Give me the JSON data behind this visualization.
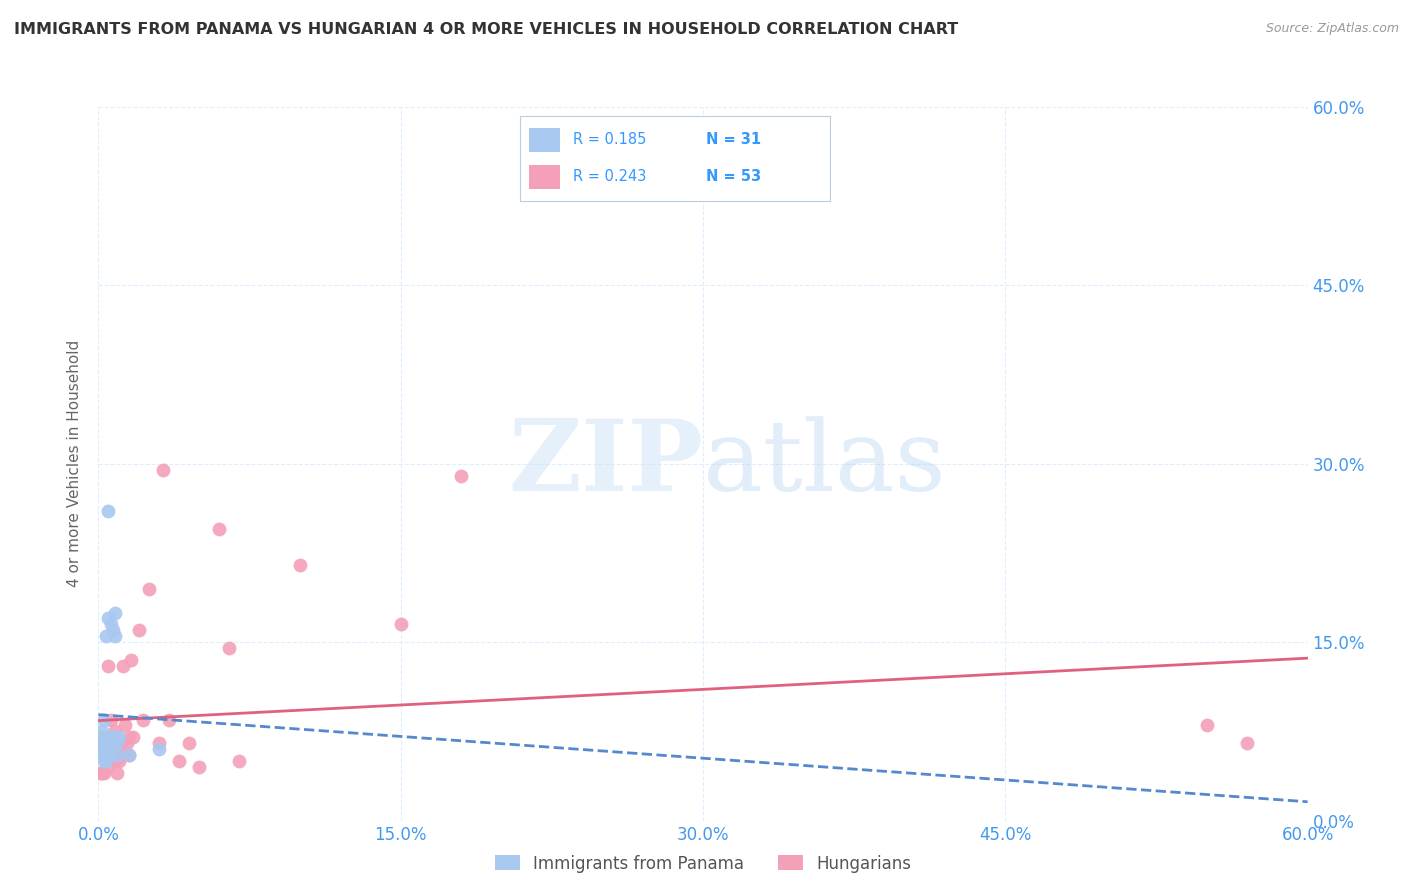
{
  "title": "IMMIGRANTS FROM PANAMA VS HUNGARIAN 4 OR MORE VEHICLES IN HOUSEHOLD CORRELATION CHART",
  "source": "Source: ZipAtlas.com",
  "ylabel": "4 or more Vehicles in Household",
  "xlim": [
    0.0,
    0.6
  ],
  "ylim": [
    0.0,
    0.6
  ],
  "xticks": [
    0.0,
    0.15,
    0.3,
    0.45,
    0.6
  ],
  "yticks": [
    0.0,
    0.15,
    0.3,
    0.45,
    0.6
  ],
  "xticklabels": [
    "0.0%",
    "15.0%",
    "30.0%",
    "45.0%",
    "60.0%"
  ],
  "yticklabels": [
    "0.0%",
    "15.0%",
    "30.0%",
    "45.0%",
    "60.0%"
  ],
  "panama_R": 0.185,
  "panama_N": 31,
  "hungarian_R": 0.243,
  "hungarian_N": 53,
  "panama_color": "#a8c8f0",
  "hungarian_color": "#f4a0b8",
  "panama_line_color": "#5588cc",
  "hungarian_line_color": "#e06080",
  "watermark_zip": "ZIP",
  "watermark_atlas": "atlas",
  "legend_text_color": "#3399ff",
  "tick_color": "#4499ee",
  "ylabel_color": "#666666",
  "title_color": "#333333",
  "source_color": "#999999",
  "grid_color": "#ddeeff",
  "panama_x": [
    0.001,
    0.001,
    0.002,
    0.002,
    0.002,
    0.003,
    0.003,
    0.003,
    0.003,
    0.004,
    0.004,
    0.004,
    0.004,
    0.004,
    0.005,
    0.005,
    0.005,
    0.005,
    0.005,
    0.006,
    0.006,
    0.006,
    0.007,
    0.007,
    0.008,
    0.008,
    0.009,
    0.009,
    0.01,
    0.015,
    0.03
  ],
  "panama_y": [
    0.055,
    0.07,
    0.06,
    0.065,
    0.075,
    0.05,
    0.055,
    0.065,
    0.085,
    0.05,
    0.055,
    0.06,
    0.065,
    0.155,
    0.055,
    0.06,
    0.065,
    0.17,
    0.26,
    0.065,
    0.07,
    0.165,
    0.07,
    0.16,
    0.155,
    0.175,
    0.055,
    0.065,
    0.07,
    0.055,
    0.06
  ],
  "hungarian_x": [
    0.001,
    0.001,
    0.002,
    0.002,
    0.002,
    0.003,
    0.003,
    0.003,
    0.003,
    0.004,
    0.004,
    0.005,
    0.005,
    0.005,
    0.005,
    0.006,
    0.006,
    0.007,
    0.007,
    0.008,
    0.008,
    0.008,
    0.009,
    0.009,
    0.01,
    0.01,
    0.01,
    0.011,
    0.012,
    0.012,
    0.013,
    0.014,
    0.015,
    0.015,
    0.016,
    0.017,
    0.02,
    0.022,
    0.025,
    0.03,
    0.032,
    0.035,
    0.04,
    0.045,
    0.05,
    0.06,
    0.065,
    0.07,
    0.1,
    0.15,
    0.18,
    0.55,
    0.57
  ],
  "hungarian_y": [
    0.04,
    0.065,
    0.04,
    0.06,
    0.07,
    0.04,
    0.055,
    0.065,
    0.07,
    0.05,
    0.065,
    0.045,
    0.055,
    0.065,
    0.13,
    0.055,
    0.085,
    0.055,
    0.065,
    0.05,
    0.06,
    0.075,
    0.04,
    0.06,
    0.05,
    0.06,
    0.065,
    0.065,
    0.055,
    0.13,
    0.08,
    0.065,
    0.055,
    0.07,
    0.135,
    0.07,
    0.16,
    0.085,
    0.195,
    0.065,
    0.295,
    0.085,
    0.05,
    0.065,
    0.045,
    0.245,
    0.145,
    0.05,
    0.215,
    0.165,
    0.29,
    0.08,
    0.065
  ]
}
